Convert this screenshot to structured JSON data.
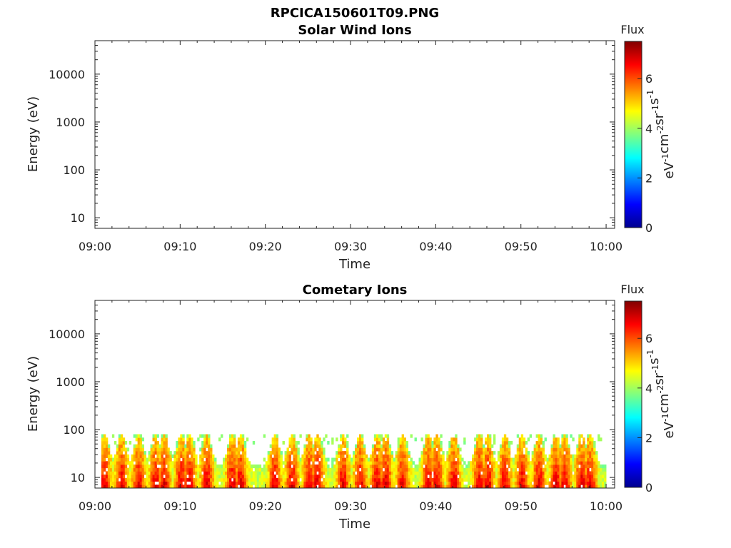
{
  "figure": {
    "title": "RPCICA150601T09.PNG"
  },
  "colorbar": {
    "label": "Flux",
    "unit": "eV-1cm-2sr-1s-1",
    "ticks": [
      "0",
      "2",
      "4",
      "6"
    ],
    "range": [
      0,
      7.5
    ],
    "colormap": "jet"
  },
  "chart_data": [
    {
      "type": "heatmap",
      "title": "Solar Wind Ions",
      "xlabel": "Time",
      "ylabel": "Energy (eV)",
      "x_ticks": [
        "09:00",
        "09:10",
        "09:20",
        "09:30",
        "09:40",
        "09:50",
        "10:00"
      ],
      "y_ticks": [
        "10",
        "100",
        "1000",
        "10000"
      ],
      "y_scale": "log",
      "ylim": [
        6,
        50000
      ],
      "xlim": [
        "09:00",
        "10:01"
      ],
      "values": []
    },
    {
      "type": "heatmap",
      "title": "Cometary Ions",
      "xlabel": "Time",
      "ylabel": "Energy (eV)",
      "x_ticks": [
        "09:00",
        "09:10",
        "09:20",
        "09:30",
        "09:40",
        "09:50",
        "10:00"
      ],
      "y_ticks": [
        "10",
        "100",
        "1000",
        "10000"
      ],
      "y_scale": "log",
      "ylim": [
        6,
        50000
      ],
      "xlim": [
        "09:00",
        "10:01"
      ],
      "energy_range_observed": [
        6,
        80
      ],
      "max_flux_approx": 7,
      "peak_times": [
        "09:01",
        "09:03",
        "09:05",
        "09:07",
        "09:08",
        "09:10",
        "09:11",
        "09:13",
        "09:16",
        "09:17",
        "09:21",
        "09:23",
        "09:25",
        "09:26",
        "09:29",
        "09:31",
        "09:33",
        "09:34",
        "09:36",
        "09:39",
        "09:40",
        "09:42",
        "09:45",
        "09:46",
        "09:48",
        "09:50",
        "09:52",
        "09:54",
        "09:55",
        "09:57",
        "09:58"
      ]
    }
  ]
}
